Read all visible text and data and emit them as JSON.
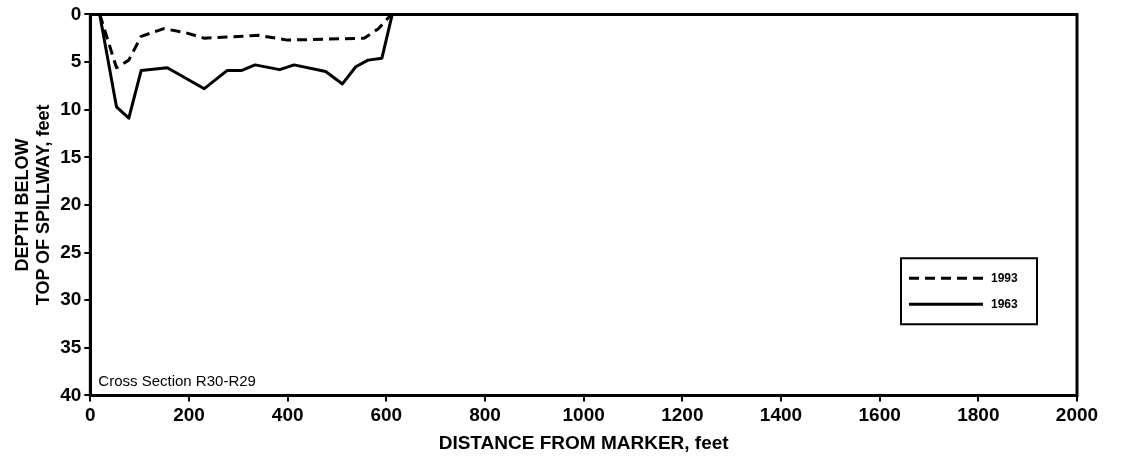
{
  "chart_data": {
    "type": "line",
    "xlabel": "DISTANCE FROM MARKER, feet",
    "ylabel": "DEPTH BELOW\nTOP OF SPILLWAY, feet",
    "xlim": [
      0,
      2000
    ],
    "xticks": [
      0,
      200,
      400,
      600,
      800,
      1000,
      1200,
      1400,
      1600,
      1800,
      2000
    ],
    "ylim": [
      40,
      0
    ],
    "yticks": [
      0,
      5,
      10,
      15,
      20,
      25,
      30,
      35,
      40
    ],
    "grid": false,
    "legend": "right",
    "marker": "none",
    "annotations": [
      "Cross Section R30-R29"
    ],
    "series": [
      {
        "name": "1993",
        "color": "#000000",
        "line_style": "dashed",
        "x": [
          19,
          24,
          53,
          78,
          103,
          149,
          192,
          231,
          342,
          399,
          555,
          584,
          605,
          612
        ],
        "values": [
          0,
          0.8,
          5.6,
          4.8,
          2.3,
          1.5,
          1.9,
          2.5,
          2.2,
          2.7,
          2.5,
          1.5,
          0.3,
          0
        ]
      },
      {
        "name": "1963",
        "color": "#000000",
        "line_style": "solid",
        "x": [
          19,
          53,
          78,
          103,
          156,
          231,
          277,
          306,
          334,
          384,
          413,
          477,
          511,
          538,
          563,
          591,
          612
        ],
        "values": [
          0,
          9.7,
          10.9,
          5.9,
          5.6,
          7.8,
          5.9,
          5.9,
          5.3,
          5.8,
          5.3,
          6.0,
          7.3,
          5.5,
          4.8,
          4.6,
          0
        ]
      }
    ]
  }
}
